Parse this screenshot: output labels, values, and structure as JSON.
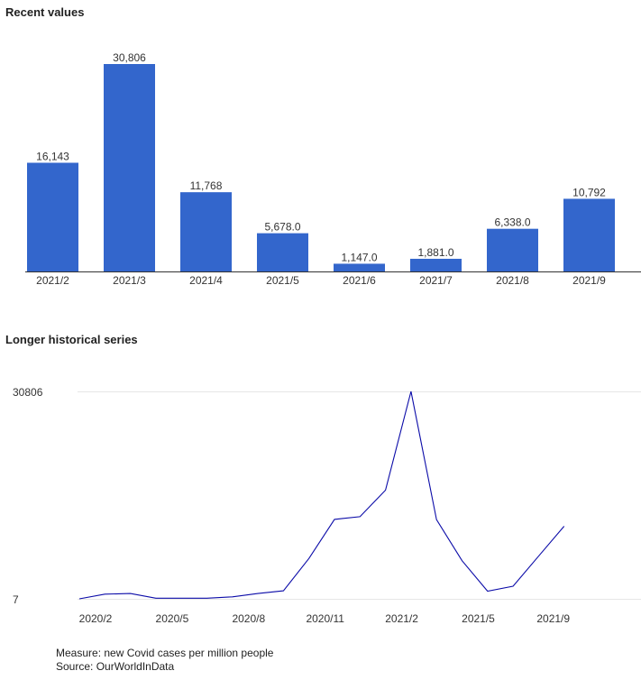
{
  "chart_data": [
    {
      "type": "bar",
      "title": "Recent values",
      "categories": [
        "2021/2",
        "2021/3",
        "2021/4",
        "2021/5",
        "2021/6",
        "2021/7",
        "2021/8",
        "2021/9"
      ],
      "values": [
        16143,
        30806,
        11768,
        5678.0,
        1147.0,
        1881.0,
        6338.0,
        10792
      ],
      "value_labels": [
        "16,143",
        "30,806",
        "11,768",
        "5,678.0",
        "1,147.0",
        "1,881.0",
        "6,338.0",
        "10,792"
      ],
      "ylim": [
        0,
        30806
      ],
      "color": "#3366cc"
    },
    {
      "type": "line",
      "title": "Longer historical series",
      "x": [
        "2020/2",
        "2020/3",
        "2020/4",
        "2020/5",
        "2020/6",
        "2020/7",
        "2020/8",
        "2020/9",
        "2020/10",
        "2020/11",
        "2020/12",
        "2021/1",
        "2021/2",
        "2021/3",
        "2021/4",
        "2021/5",
        "2021/6",
        "2021/7",
        "2021/8",
        "2021/9"
      ],
      "values": [
        7,
        700,
        800,
        100,
        100,
        100,
        300,
        800,
        1200,
        6000,
        11800,
        12200,
        16143,
        30806,
        11768,
        5678.0,
        1147.0,
        1881.0,
        6338.0,
        10792
      ],
      "x_ticks": [
        "2020/2",
        "2020/5",
        "2020/8",
        "2020/11",
        "2021/2",
        "2021/5",
        "2021/9"
      ],
      "y_ticks": [
        "30806",
        "7"
      ],
      "ylim": [
        7,
        30806
      ],
      "color": "#0b0ba8"
    }
  ],
  "footer": {
    "measure": "Measure: new Covid cases per million people",
    "source": "Source: OurWorldInData"
  }
}
